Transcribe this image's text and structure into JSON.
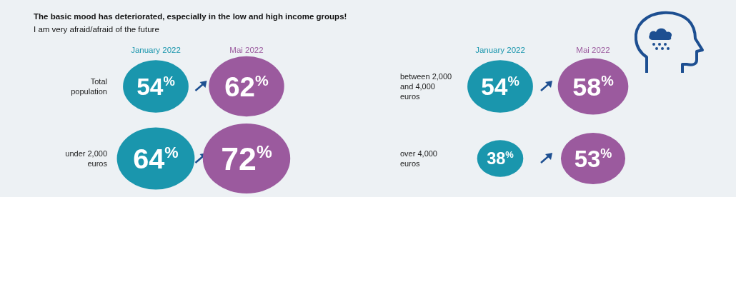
{
  "chart_data": {
    "type": "other",
    "title": "The basic mood has deteriorated, especially in the low and high income groups!",
    "subtitle": "I am very afraid/afraid of the future",
    "categories": [
      "Total population",
      "under 2,000 euros",
      "between 2,000 and 4,000 euros",
      "over 4,000 euros"
    ],
    "series": [
      {
        "name": "January 2022",
        "color": "#1a96ad",
        "values": [
          54,
          64,
          54,
          38
        ],
        "value_labels": [
          "54$^{%}$",
          "64$^{%}$",
          "54$^{%}$",
          "38$^{%}$"
        ]
      },
      {
        "name": "Mai 2022",
        "color": "#9b5a9e",
        "values": [
          62,
          72,
          58,
          53
        ],
        "value_labels": [
          "62$^{%}$",
          "72$^{%}$",
          "58$^{%}$",
          "53$^{%}$"
        ]
      }
    ]
  }
}
